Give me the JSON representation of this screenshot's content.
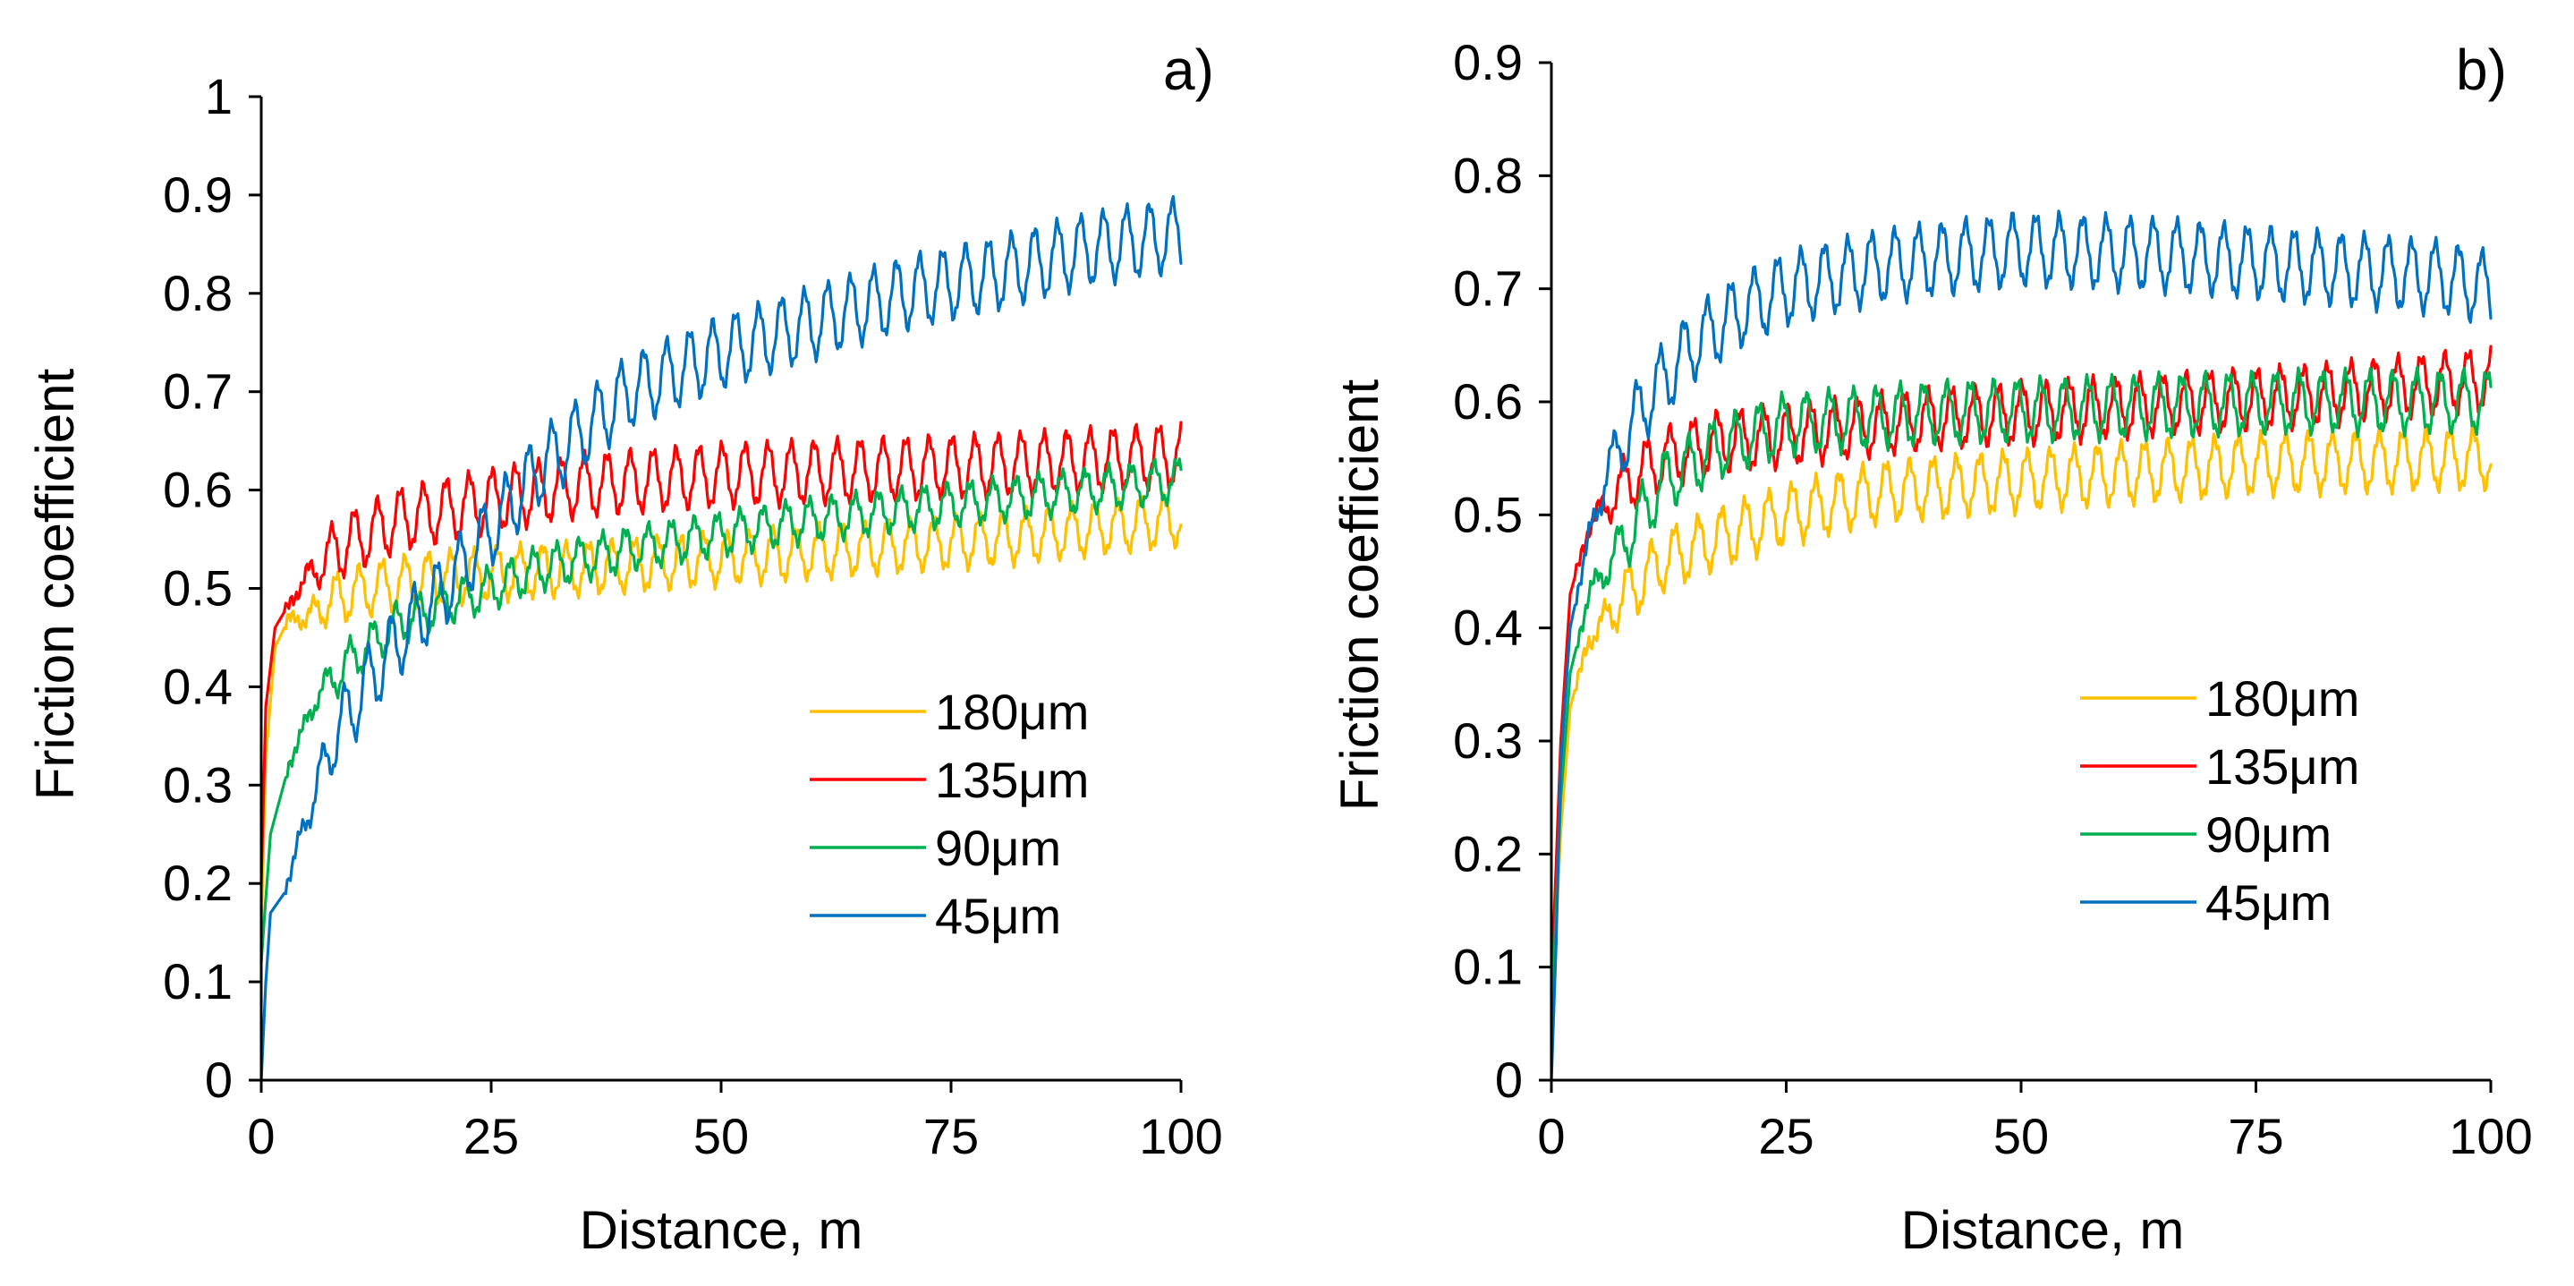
{
  "chart_data": [
    {
      "type": "line",
      "panel_label": "a)",
      "xlabel": "Distance, m",
      "ylabel": "Friction coefficient",
      "xlim": [
        0,
        100
      ],
      "ylim": [
        0,
        1
      ],
      "xticks": [
        0,
        25,
        50,
        75,
        100
      ],
      "xtick_labels": [
        "0",
        "25",
        "50",
        "75",
        "100"
      ],
      "yticks": [
        0,
        0.1,
        0.2,
        0.3,
        0.4,
        0.5,
        0.6,
        0.7,
        0.8,
        0.9,
        1
      ],
      "ytick_labels": [
        "0",
        "0.1",
        "0.2",
        "0.3",
        "0.4",
        "0.5",
        "0.6",
        "0.7",
        "0.8",
        "0.9",
        "1"
      ],
      "grid": false,
      "legend_position": "center-right",
      "series": [
        {
          "name": "180μm",
          "color": "#FFC000",
          "osc_amp": 0.025,
          "points": [
            [
              0,
              0.15
            ],
            [
              0.5,
              0.33
            ],
            [
              1.5,
              0.44
            ],
            [
              3,
              0.47
            ],
            [
              5,
              0.47
            ],
            [
              8,
              0.49
            ],
            [
              12,
              0.5
            ],
            [
              18,
              0.51
            ],
            [
              25,
              0.515
            ],
            [
              35,
              0.52
            ],
            [
              50,
              0.53
            ],
            [
              65,
              0.54
            ],
            [
              80,
              0.55
            ],
            [
              100,
              0.57
            ]
          ]
        },
        {
          "name": "135μm",
          "color": "#FF0000",
          "osc_amp": 0.03,
          "points": [
            [
              0,
              0.2
            ],
            [
              0.5,
              0.38
            ],
            [
              1.5,
              0.46
            ],
            [
              4,
              0.5
            ],
            [
              8,
              0.54
            ],
            [
              15,
              0.57
            ],
            [
              25,
              0.59
            ],
            [
              35,
              0.605
            ],
            [
              50,
              0.615
            ],
            [
              65,
              0.62
            ],
            [
              80,
              0.625
            ],
            [
              100,
              0.635
            ]
          ]
        },
        {
          "name": "90μm",
          "color": "#00B050",
          "osc_amp": 0.02,
          "points": [
            [
              0,
              0.12
            ],
            [
              1,
              0.25
            ],
            [
              3,
              0.32
            ],
            [
              6,
              0.39
            ],
            [
              10,
              0.43
            ],
            [
              15,
              0.465
            ],
            [
              20,
              0.485
            ],
            [
              25,
              0.5
            ],
            [
              30,
              0.52
            ],
            [
              40,
              0.54
            ],
            [
              50,
              0.555
            ],
            [
              60,
              0.57
            ],
            [
              75,
              0.585
            ],
            [
              90,
              0.6
            ],
            [
              100,
              0.61
            ]
          ]
        },
        {
          "name": "45μm",
          "color": "#0070C0",
          "osc_amp": 0.035,
          "points": [
            [
              0,
              0
            ],
            [
              0.5,
              0.1
            ],
            [
              1,
              0.17
            ],
            [
              2.5,
              0.19
            ],
            [
              5,
              0.27
            ],
            [
              8,
              0.35
            ],
            [
              12,
              0.41
            ],
            [
              16,
              0.46
            ],
            [
              20,
              0.5
            ],
            [
              25,
              0.56
            ],
            [
              30,
              0.62
            ],
            [
              35,
              0.66
            ],
            [
              40,
              0.7
            ],
            [
              50,
              0.74
            ],
            [
              60,
              0.77
            ],
            [
              70,
              0.8
            ],
            [
              80,
              0.82
            ],
            [
              90,
              0.845
            ],
            [
              100,
              0.86
            ]
          ]
        }
      ]
    },
    {
      "type": "line",
      "panel_label": "b)",
      "xlabel": "Distance, m",
      "ylabel": "Friction coefficient",
      "xlim": [
        0,
        100
      ],
      "ylim": [
        0,
        0.9
      ],
      "xticks": [
        0,
        25,
        50,
        75,
        100
      ],
      "xtick_labels": [
        "0",
        "25",
        "50",
        "75",
        "100"
      ],
      "yticks": [
        0,
        0.1,
        0.2,
        0.3,
        0.4,
        0.5,
        0.6,
        0.7,
        0.8,
        0.9
      ],
      "ytick_labels": [
        "0",
        "0.1",
        "0.2",
        "0.3",
        "0.4",
        "0.5",
        "0.6",
        "0.7",
        "0.8",
        "0.9"
      ],
      "grid": false,
      "legend_position": "center-right",
      "series": [
        {
          "name": "180μm",
          "color": "#FFC000",
          "osc_amp": 0.025,
          "points": [
            [
              0,
              0.05
            ],
            [
              1,
              0.22
            ],
            [
              2,
              0.33
            ],
            [
              4,
              0.39
            ],
            [
              8,
              0.43
            ],
            [
              12,
              0.46
            ],
            [
              18,
              0.48
            ],
            [
              25,
              0.5
            ],
            [
              35,
              0.52
            ],
            [
              50,
              0.53
            ],
            [
              75,
              0.545
            ],
            [
              100,
              0.55
            ]
          ]
        },
        {
          "name": "135μm",
          "color": "#FF0000",
          "osc_amp": 0.025,
          "points": [
            [
              0,
              0.08
            ],
            [
              1,
              0.3
            ],
            [
              2,
              0.43
            ],
            [
              4,
              0.49
            ],
            [
              8,
              0.53
            ],
            [
              12,
              0.55
            ],
            [
              18,
              0.565
            ],
            [
              25,
              0.57
            ],
            [
              40,
              0.585
            ],
            [
              60,
              0.595
            ],
            [
              80,
              0.605
            ],
            [
              100,
              0.62
            ]
          ]
        },
        {
          "name": "90μm",
          "color": "#00B050",
          "osc_amp": 0.025,
          "points": [
            [
              0,
              0.05
            ],
            [
              1,
              0.25
            ],
            [
              2,
              0.36
            ],
            [
              4,
              0.43
            ],
            [
              8,
              0.48
            ],
            [
              12,
              0.53
            ],
            [
              18,
              0.56
            ],
            [
              25,
              0.58
            ],
            [
              40,
              0.59
            ],
            [
              60,
              0.595
            ],
            [
              80,
              0.6
            ],
            [
              100,
              0.6
            ]
          ]
        },
        {
          "name": "45μm",
          "color": "#0070C0",
          "osc_amp": 0.03,
          "points": [
            [
              0,
              0
            ],
            [
              0.5,
              0.12
            ],
            [
              1,
              0.28
            ],
            [
              2,
              0.4
            ],
            [
              4,
              0.48
            ],
            [
              6,
              0.54
            ],
            [
              10,
              0.6
            ],
            [
              15,
              0.65
            ],
            [
              20,
              0.68
            ],
            [
              25,
              0.7
            ],
            [
              35,
              0.72
            ],
            [
              50,
              0.735
            ],
            [
              65,
              0.73
            ],
            [
              80,
              0.72
            ],
            [
              95,
              0.71
            ],
            [
              100,
              0.7
            ]
          ]
        }
      ]
    }
  ]
}
